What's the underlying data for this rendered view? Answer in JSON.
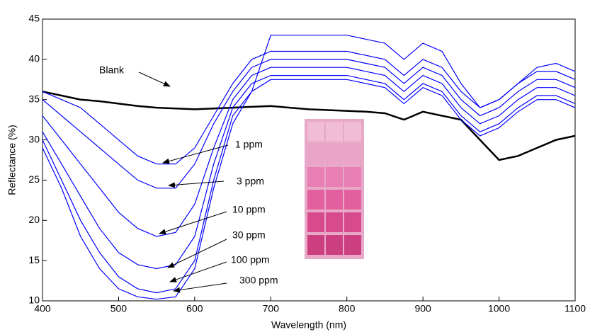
{
  "chart_data": {
    "type": "line",
    "x_label": "Wavelength (nm)",
    "y_label": "Reflectance (%)",
    "x": [
      400,
      425,
      450,
      475,
      500,
      525,
      550,
      575,
      600,
      625,
      650,
      675,
      700,
      725,
      750,
      775,
      800,
      825,
      850,
      875,
      900,
      925,
      950,
      975,
      1000,
      1025,
      1050,
      1075,
      1100
    ],
    "series": [
      {
        "color": "#000000",
        "values": [
          36,
          35.5,
          35,
          34.8,
          34.5,
          34.2,
          34,
          33.9,
          33.8,
          33.9,
          34,
          34.1,
          34.2,
          34,
          33.8,
          33.7,
          33.6,
          33.5,
          33.3,
          32.5,
          33.5,
          33,
          32.5,
          30,
          27.5,
          28,
          29,
          30,
          30.5
        ]
      },
      {
        "color": "#0000ff",
        "values": [
          36,
          35,
          34,
          32,
          30,
          28,
          27,
          27,
          29,
          33,
          37,
          40,
          41,
          41,
          41,
          41,
          41,
          40.5,
          40,
          38,
          40,
          39,
          36,
          34,
          35,
          37,
          38.5,
          38.5,
          37.5
        ]
      },
      {
        "color": "#0000ff",
        "values": [
          35,
          33,
          31,
          29,
          27,
          25,
          24,
          24,
          27,
          32,
          36,
          39,
          40,
          40,
          40,
          40,
          40,
          39.5,
          39,
          37,
          39,
          38,
          35,
          33,
          34,
          36,
          37.5,
          37.5,
          36.5
        ]
      },
      {
        "color": "#0000ff",
        "values": [
          33,
          30,
          27,
          24,
          21,
          19,
          18,
          18.5,
          22,
          29,
          35,
          38,
          39,
          39,
          39,
          39,
          39,
          38.5,
          38,
          36,
          38,
          37,
          34,
          32,
          33,
          35,
          36.5,
          36.5,
          35.5
        ]
      },
      {
        "color": "#0000ff",
        "values": [
          31,
          27,
          23,
          19,
          16,
          14.5,
          14,
          14.5,
          18,
          27,
          34,
          37,
          38,
          38,
          38,
          38,
          38,
          37.5,
          37,
          35,
          37,
          36,
          33,
          31,
          32,
          34,
          35.5,
          35.5,
          34.5
        ]
      },
      {
        "color": "#0000ff",
        "values": [
          30,
          25,
          20,
          16,
          13,
          11.5,
          11,
          11.5,
          15,
          25,
          33,
          36,
          37.5,
          37.5,
          37.5,
          37.5,
          37.5,
          37,
          36.5,
          34.5,
          36.5,
          35.5,
          32.5,
          30.5,
          31.5,
          33.5,
          35,
          35,
          34
        ]
      },
      {
        "color": "#0000ff",
        "values": [
          29,
          24,
          18,
          14,
          11.5,
          10.5,
          10.2,
          10.5,
          14,
          24,
          32,
          36,
          43,
          43,
          43,
          43,
          43,
          42.5,
          42,
          40,
          42,
          41,
          37,
          34,
          35,
          37,
          39,
          39.5,
          38.5
        ]
      }
    ],
    "annotations": [
      "Blank",
      "1 ppm",
      "3 ppm",
      "10 ppm",
      "30 ppm",
      "100 ppm",
      "300 ppm"
    ],
    "xlim": [
      400,
      1100
    ],
    "xticks": [
      400,
      500,
      600,
      700,
      800,
      900,
      1000,
      1100
    ],
    "ylim": [
      10,
      45
    ],
    "yticks": [
      10,
      15,
      20,
      25,
      30,
      35,
      40,
      45
    ]
  }
}
